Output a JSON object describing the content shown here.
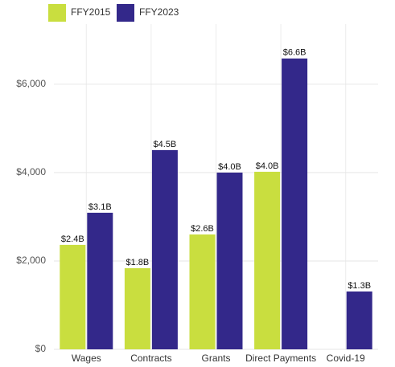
{
  "chart_data": {
    "type": "bar",
    "categories": [
      "Wages",
      "Contracts",
      "Grants",
      "Direct Payments",
      "Covid-19"
    ],
    "series": [
      {
        "name": "FFY2015",
        "color": "#c9de3f",
        "values": [
          2364,
          1836,
          2600,
          4018,
          null
        ],
        "value_labels": [
          "$2.4B",
          "$1.8B",
          "$2.6B",
          "$4.0B",
          null
        ]
      },
      {
        "name": "FFY2023",
        "color": "#33288a",
        "values": [
          3091,
          4509,
          4000,
          6582,
          1309
        ],
        "value_labels": [
          "$3.1B",
          "$4.5B",
          "$4.0B",
          "$6.6B",
          "$1.3B"
        ]
      }
    ],
    "ylim": [
      0,
      7360
    ],
    "yticks": [
      {
        "value": 0,
        "label": "$0"
      },
      {
        "value": 2000,
        "label": "$2,000"
      },
      {
        "value": 4000,
        "label": "$4,000"
      },
      {
        "value": 6000,
        "label": "$6,000"
      }
    ],
    "grid": true,
    "legend": "top-left"
  }
}
